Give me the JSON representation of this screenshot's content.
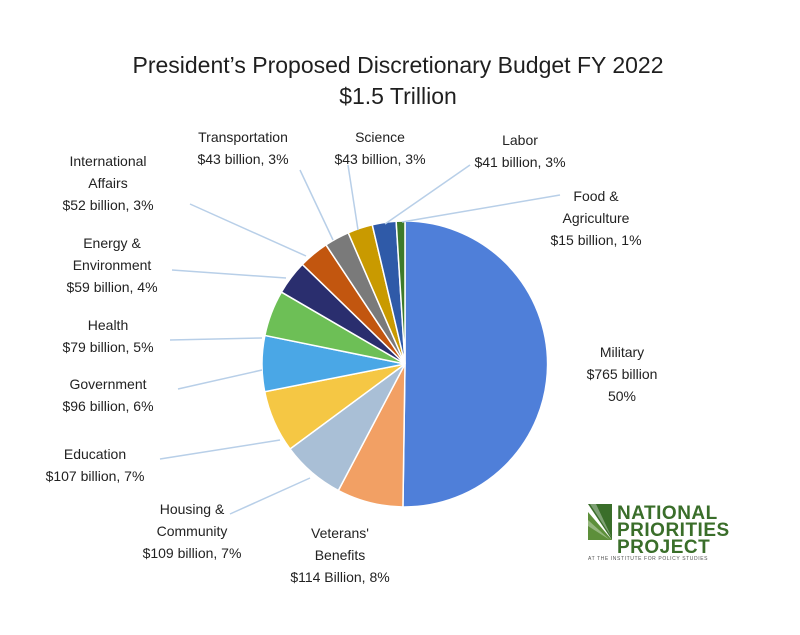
{
  "chart_data": {
    "type": "pie",
    "title": "President’s Proposed Discretionary Budget FY 2022",
    "subtitle": "$1.5 Trillion",
    "slices": [
      {
        "name": "Military",
        "value": 765,
        "lines": [
          "Military",
          "$765 billion",
          "50%"
        ],
        "color": "#4f7fd9"
      },
      {
        "name": "Veterans' Benefits",
        "value": 114,
        "lines": [
          "Veterans'",
          "Benefits",
          "$114 Billion, 8%"
        ],
        "color": "#f2a064"
      },
      {
        "name": "Housing & Community",
        "value": 109,
        "lines": [
          "Housing &",
          "Community",
          "$109 billion, 7%"
        ],
        "color": "#a9bfd6"
      },
      {
        "name": "Education",
        "value": 107,
        "lines": [
          "Education",
          "$107 billion, 7%"
        ],
        "color": "#f5c744"
      },
      {
        "name": "Government",
        "value": 96,
        "lines": [
          "Government",
          "$96 billion, 6%"
        ],
        "color": "#4aa7e6"
      },
      {
        "name": "Health",
        "value": 79,
        "lines": [
          "Health",
          "$79 billion, 5%"
        ],
        "color": "#6dbf56"
      },
      {
        "name": "Energy & Environment",
        "value": 59,
        "lines": [
          "Energy &",
          "Environment",
          "$59 billion, 4%"
        ],
        "color": "#2a2e6e"
      },
      {
        "name": "International Affairs",
        "value": 52,
        "lines": [
          "International",
          "Affairs",
          "$52 billion, 3%"
        ],
        "color": "#c2560f"
      },
      {
        "name": "Transportation",
        "value": 43,
        "lines": [
          "Transportation",
          "$43 billion, 3%"
        ],
        "color": "#7a7a7a"
      },
      {
        "name": "Science",
        "value": 43,
        "lines": [
          "Science",
          "$43 billion, 3%"
        ],
        "color": "#c99a00"
      },
      {
        "name": "Labor",
        "value": 41,
        "lines": [
          "Labor",
          "$41 billion, 3%"
        ],
        "color": "#2f5aa8"
      },
      {
        "name": "Food & Agriculture",
        "value": 15,
        "lines": [
          "Food &",
          "Agriculture",
          "$15 billion, 1%"
        ],
        "color": "#3d7a2a"
      }
    ]
  },
  "logo": {
    "lines": [
      "NATIONAL",
      "PRIORITIES",
      "PROJECT"
    ],
    "subline": "AT THE INSTITUTE FOR POLICY STUDIES",
    "color": "#3a6e2a"
  }
}
